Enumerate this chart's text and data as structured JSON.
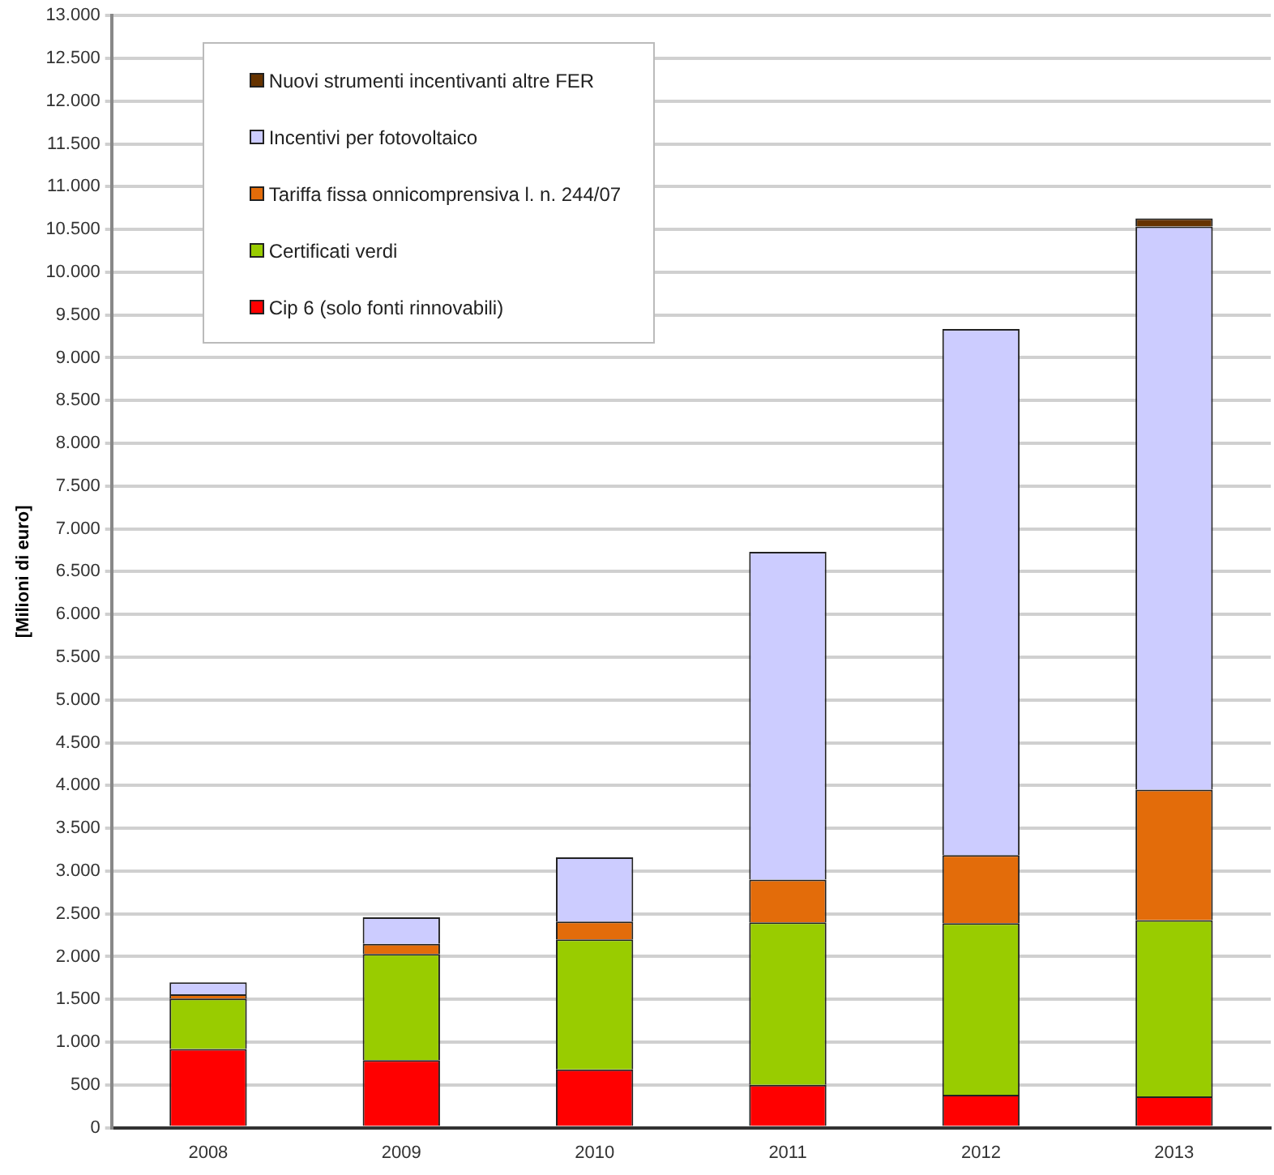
{
  "chart_data": {
    "type": "bar",
    "stacked": true,
    "ylabel": "[Milioni di euro]",
    "categories": [
      "2008",
      "2009",
      "2010",
      "2011",
      "2012",
      "2013"
    ],
    "series": [
      {
        "name": "Cip 6 (solo fonti rinnovabili)",
        "color": "#ff0000",
        "values": [
          920,
          790,
          680,
          500,
          385,
          365
        ]
      },
      {
        "name": "Certificati verdi",
        "color": "#99cc00",
        "values": [
          590,
          1240,
          1520,
          1900,
          2005,
          2060
        ]
      },
      {
        "name": "Tariffa fissa onnicomprensiva l. n. 244/07",
        "color": "#e36c0a",
        "values": [
          50,
          120,
          210,
          500,
          795,
          1525
        ]
      },
      {
        "name": "Incentivi per fotovoltaico",
        "color": "#ccccff",
        "values": [
          140,
          310,
          750,
          3830,
          6150,
          6585
        ]
      },
      {
        "name": "Nuovi strumenti incentivanti altre FER",
        "color": "#663300",
        "values": [
          0,
          0,
          0,
          0,
          0,
          95
        ]
      }
    ],
    "ylim": [
      0,
      13000
    ],
    "yticks": [
      0,
      500,
      {
        "value": 1000,
        "label": "1.000"
      },
      {
        "value": 1500,
        "label": "1.500"
      },
      {
        "value": 2000,
        "label": "2.000"
      },
      {
        "value": 2500,
        "label": "2.500"
      },
      {
        "value": 3000,
        "label": "3.000"
      },
      {
        "value": 3500,
        "label": "3.500"
      },
      {
        "value": 4000,
        "label": "4.000"
      },
      {
        "value": 4500,
        "label": "4.500"
      },
      {
        "value": 5000,
        "label": "5.000"
      },
      {
        "value": 5500,
        "label": "5.500"
      },
      {
        "value": 6000,
        "label": "6.000"
      },
      {
        "value": 6500,
        "label": "6.500"
      },
      {
        "value": 7000,
        "label": "7.000"
      },
      {
        "value": 7500,
        "label": "7.500"
      },
      {
        "value": 8000,
        "label": "8.000"
      },
      {
        "value": 8500,
        "label": "8.500"
      },
      {
        "value": 9000,
        "label": "9.000"
      },
      {
        "value": 9500,
        "label": "9.500"
      },
      {
        "value": 10000,
        "label": "10.000"
      },
      {
        "value": 10500,
        "label": "10.500"
      },
      {
        "value": 11000,
        "label": "11.000"
      },
      {
        "value": 11500,
        "label": "11.500"
      },
      {
        "value": 12000,
        "label": "12.000"
      },
      {
        "value": 12500,
        "label": "12.500"
      },
      {
        "value": 13000,
        "label": "13.000"
      }
    ],
    "grid": "y",
    "legend": "top left"
  }
}
